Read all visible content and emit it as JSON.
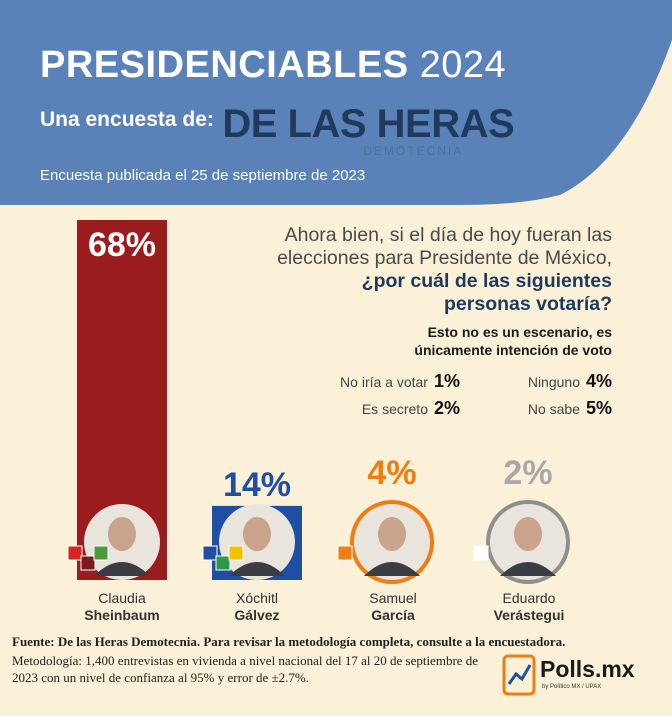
{
  "header": {
    "title_main": "PRESIDENCIABLES",
    "title_year": "2024",
    "subtitle": "Una encuesta de:",
    "brand_main": "DE LAS HERAS",
    "brand_sub": "DEMOTECNIA",
    "published": "Encuesta publicada el 25 de septiembre de 2023"
  },
  "question": {
    "line1": "Ahora bien, si el día de hoy fueran las",
    "line2": "elecciones para Presidente de México,",
    "line3": "¿por cuál de las siguientes",
    "line4": "personas votaría?"
  },
  "note": {
    "line1": "Esto no es un escenario, es",
    "line2": "únicamente intención de voto"
  },
  "others": [
    {
      "label": "No iría a votar",
      "pct": "1%"
    },
    {
      "label": "Ninguno",
      "pct": "4%"
    },
    {
      "label": "Es secreto",
      "pct": "2%"
    },
    {
      "label": "No sabe",
      "pct": "5%"
    }
  ],
  "chart_data": {
    "type": "bar",
    "categories": [
      "Claudia Sheinbaum",
      "Xóchitl Gálvez",
      "Samuel García",
      "Eduardo Verástegui"
    ],
    "values": [
      68,
      14,
      4,
      2
    ],
    "value_labels": [
      "68%",
      "14%",
      "4%",
      "2%"
    ],
    "first_names": [
      "Claudia",
      "Xóchitl",
      "Samuel",
      "Eduardo"
    ],
    "last_names": [
      "Sheinbaum",
      "Gálvez",
      "García",
      "Verástegui"
    ],
    "colors": [
      "#9b1c1f",
      "#1f4fa3",
      "#f07c12",
      "#b3b3b3"
    ],
    "label_colors": [
      "#ffffff",
      "#1f4fa3",
      "#f07c12",
      "#a8a8a8"
    ],
    "party_badges": [
      [
        "PT",
        "MORENA",
        "PVEM"
      ],
      [
        "PAN",
        "PRI",
        "PRD"
      ],
      [
        "MC"
      ],
      [
        "IND"
      ]
    ],
    "unit": "%",
    "ylim": [
      0,
      68
    ]
  },
  "footer": {
    "source": "Fuente: De las Heras Demotecnia. Para revisar la metodología completa, consulte a la encuestadora.",
    "method": "Metodología: 1,400 entrevistas en vivienda a nivel nacional del 17 al 20 de septiembre de 2023 con un nivel de confianza al 95% y error de ±2.7%."
  },
  "logo": {
    "name": "Polls.mx",
    "byline": "by Político MX / UPAX"
  },
  "colors": {
    "header_blue": "#5b82b8",
    "background": "#fbf1d8",
    "brand_navy": "#1f3a5c"
  }
}
